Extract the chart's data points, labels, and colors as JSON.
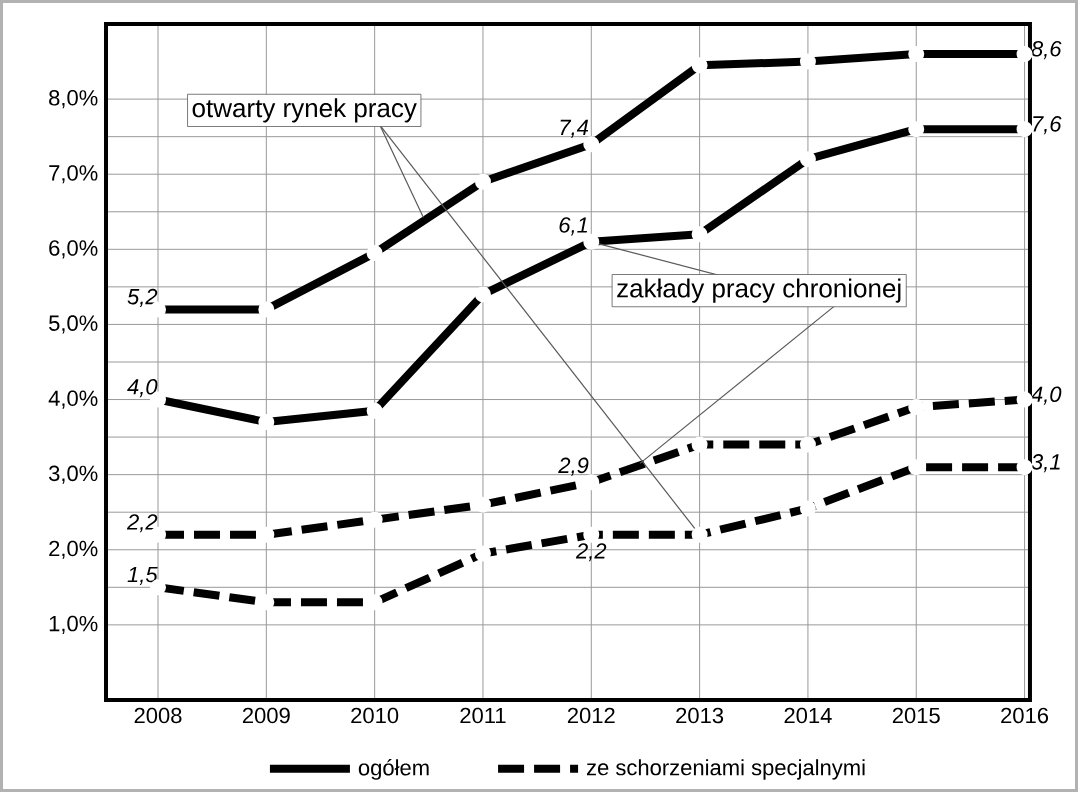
{
  "chart_data": {
    "type": "line",
    "categories": [
      "2008",
      "2009",
      "2010",
      "2011",
      "2012",
      "2013",
      "2014",
      "2015",
      "2016"
    ],
    "ylim": [
      0,
      9
    ],
    "yticks": [
      {
        "value": 1,
        "label": "1,0%"
      },
      {
        "value": 2,
        "label": "2,0%"
      },
      {
        "value": 3,
        "label": "3,0%"
      },
      {
        "value": 4,
        "label": "4,0%"
      },
      {
        "value": 5,
        "label": "5,0%"
      },
      {
        "value": 6,
        "label": "6,0%"
      },
      {
        "value": 7,
        "label": "7,0%"
      },
      {
        "value": 8,
        "label": "8,0%"
      }
    ],
    "grid": true,
    "legend": "bottom",
    "marker": "circle",
    "series": [
      {
        "name": "ogółem",
        "color": "#000000",
        "line_style": "solid",
        "values": [
          5.2,
          5.2,
          5.95,
          6.9,
          7.4,
          8.45,
          8.5,
          8.6,
          8.6
        ],
        "value_labels": [
          "5,2",
          null,
          null,
          null,
          "7,4",
          null,
          null,
          null,
          "8,6"
        ]
      },
      {
        "color": "#000000",
        "line_style": "solid",
        "values": [
          4.0,
          3.7,
          3.85,
          5.4,
          6.1,
          6.2,
          7.2,
          7.6,
          7.6
        ],
        "value_labels": [
          "4,0",
          null,
          null,
          null,
          "6,1",
          null,
          null,
          null,
          "7,6"
        ]
      },
      {
        "name": "ze schorzeniami specjalnymi",
        "color": "#000000",
        "line_style": "dashed",
        "values": [
          2.2,
          2.2,
          2.4,
          2.6,
          2.9,
          3.4,
          3.4,
          3.9,
          4.0
        ],
        "value_labels": [
          "2,2",
          null,
          null,
          null,
          "2,9",
          null,
          null,
          null,
          "4,0"
        ]
      },
      {
        "color": "#000000",
        "line_style": "dashed",
        "values": [
          1.5,
          1.3,
          1.3,
          1.95,
          2.2,
          2.2,
          2.55,
          3.1,
          3.1
        ],
        "value_labels": [
          "1,5",
          null,
          null,
          null,
          "2,2",
          null,
          null,
          null,
          "3,1"
        ]
      }
    ],
    "annotations": [
      {
        "text": "otwarty rynek pracy",
        "x": "2013",
        "y": 2.2
      },
      {
        "text": "zakłady pracy chronionej",
        "x": "2012",
        "y": 6.1
      }
    ]
  }
}
